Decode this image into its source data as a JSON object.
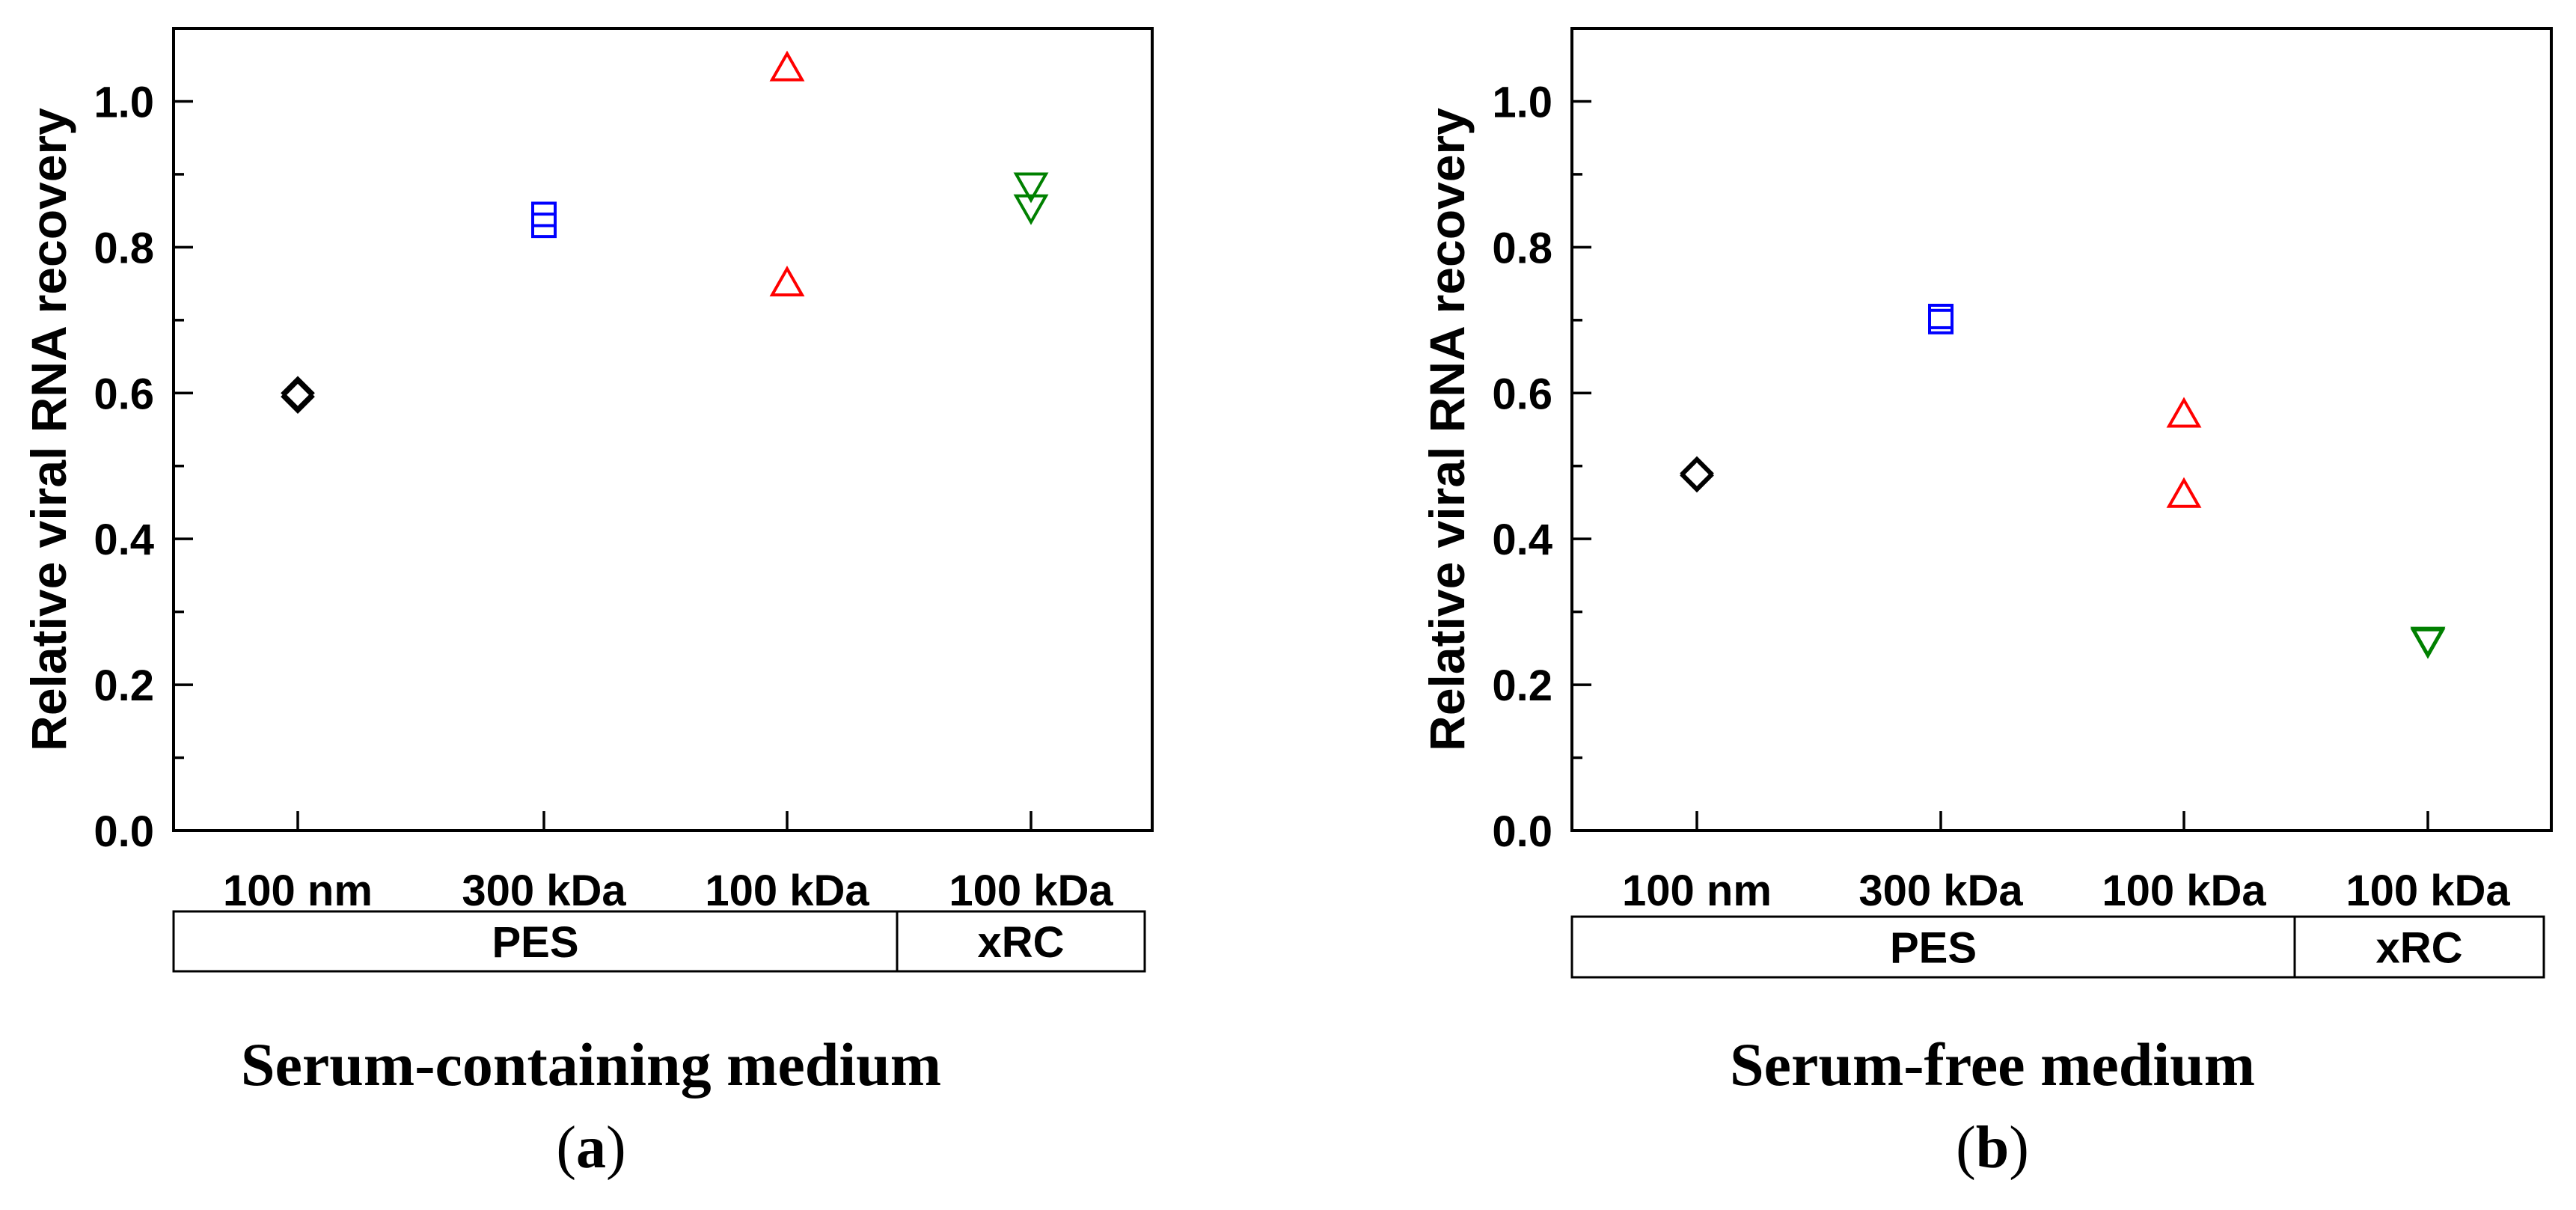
{
  "chart_data": [
    {
      "panel": "(a)",
      "type": "scatter",
      "caption": "Serum-containing medium",
      "panel_label_open": "(",
      "panel_label_letter": "a",
      "panel_label_close": ")",
      "ylabel": "Relative viral RNA recovery",
      "ylim": [
        0,
        1.1
      ],
      "yticks": [
        0.0,
        0.2,
        0.4,
        0.6,
        0.8,
        1.0
      ],
      "ytick_labels": [
        "0.0",
        "0.2",
        "0.4",
        "0.6",
        "0.8",
        "1.0"
      ],
      "categories": [
        "100 nm",
        "300 kDa",
        "100 kDa",
        "100 kDa"
      ],
      "groups": [
        {
          "label": "PES",
          "span": [
            0,
            2
          ]
        },
        {
          "label": "xRC",
          "span": [
            3,
            3
          ]
        }
      ],
      "grid": false,
      "series": [
        {
          "marker": "diamond",
          "color": "#000000",
          "category_index": 0,
          "values": [
            0.6,
            0.595
          ]
        },
        {
          "marker": "square",
          "color": "#0000ff",
          "category_index": 1,
          "values": [
            0.845,
            0.83
          ]
        },
        {
          "marker": "triangle-up",
          "color": "#ff0000",
          "category_index": 2,
          "values": [
            1.045,
            0.75
          ]
        },
        {
          "marker": "triangle-down",
          "color": "#008000",
          "category_index": 3,
          "values": [
            0.885,
            0.855
          ]
        }
      ]
    },
    {
      "panel": "(b)",
      "type": "scatter",
      "caption": "Serum-free medium",
      "panel_label_open": "(",
      "panel_label_letter": "b",
      "panel_label_close": ")",
      "ylabel": "Relative viral RNA recovery",
      "ylim": [
        0,
        1.1
      ],
      "yticks": [
        0.0,
        0.2,
        0.4,
        0.6,
        0.8,
        1.0
      ],
      "ytick_labels": [
        "0.0",
        "0.2",
        "0.4",
        "0.6",
        "0.8",
        "1.0"
      ],
      "categories": [
        "100 nm",
        "300 kDa",
        "100 kDa",
        "100 kDa"
      ],
      "groups": [
        {
          "label": "PES",
          "span": [
            0,
            2
          ]
        },
        {
          "label": "xRC",
          "span": [
            3,
            3
          ]
        }
      ],
      "grid": false,
      "series": [
        {
          "marker": "diamond",
          "color": "#000000",
          "category_index": 0,
          "values": [
            0.49,
            0.487
          ]
        },
        {
          "marker": "square",
          "color": "#0000ff",
          "category_index": 1,
          "values": [
            0.705,
            0.698
          ]
        },
        {
          "marker": "triangle-up",
          "color": "#ff0000",
          "category_index": 2,
          "values": [
            0.57,
            0.46
          ]
        },
        {
          "marker": "triangle-down",
          "color": "#008000",
          "category_index": 3,
          "values": [
            0.26,
            0.262
          ]
        }
      ]
    }
  ]
}
